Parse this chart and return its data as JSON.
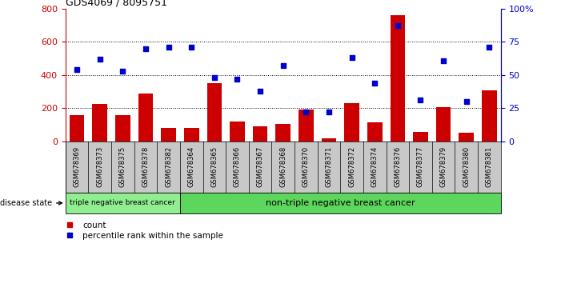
{
  "title": "GDS4069 / 8095751",
  "samples": [
    "GSM678369",
    "GSM678373",
    "GSM678375",
    "GSM678378",
    "GSM678382",
    "GSM678364",
    "GSM678365",
    "GSM678366",
    "GSM678367",
    "GSM678368",
    "GSM678370",
    "GSM678371",
    "GSM678372",
    "GSM678374",
    "GSM678376",
    "GSM678377",
    "GSM678379",
    "GSM678380",
    "GSM678381"
  ],
  "counts": [
    160,
    225,
    160,
    290,
    80,
    80,
    350,
    120,
    90,
    105,
    190,
    20,
    230,
    115,
    760,
    60,
    205,
    55,
    310
  ],
  "percentiles": [
    54,
    62,
    53,
    70,
    71,
    71,
    48,
    47,
    38,
    57,
    22,
    22,
    63,
    44,
    87,
    31,
    61,
    30,
    71
  ],
  "triple_neg_count": 5,
  "non_triple_neg_count": 14,
  "group1_label": "triple negative breast cancer",
  "group2_label": "non-triple negative breast cancer",
  "disease_state_label": "disease state",
  "bar_color": "#cc0000",
  "scatter_color": "#0000cc",
  "left_axis_color": "#cc0000",
  "right_axis_color": "#0000cc",
  "ylim_left": [
    0,
    800
  ],
  "ylim_right": [
    0,
    100
  ],
  "yticks_left": [
    0,
    200,
    400,
    600,
    800
  ],
  "yticks_right": [
    0,
    25,
    50,
    75,
    100
  ],
  "grid_dotted_values": [
    200,
    400,
    600
  ],
  "legend_count": "count",
  "legend_percentile": "percentile rank within the sample",
  "gray_bg": "#c8c8c8",
  "green_light": "#90ee90",
  "green_dark": "#5cd65c"
}
